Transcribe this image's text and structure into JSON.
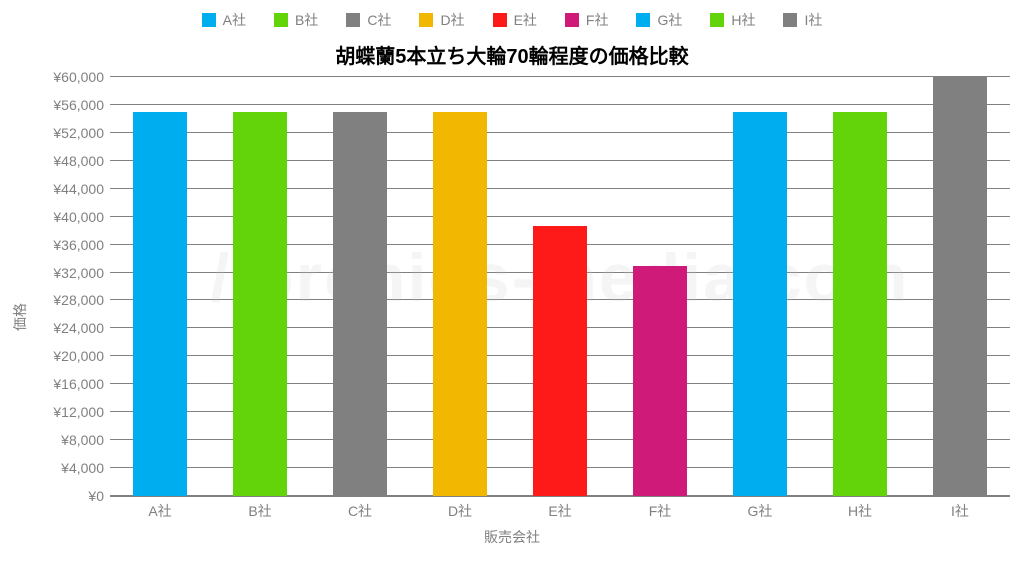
{
  "chart": {
    "type": "bar",
    "title": "胡蝶蘭5本立ち大輪70輪程度の価格比較",
    "title_fontsize": 20,
    "y_axis_label": "価格",
    "x_axis_label": "販売会社",
    "currency_prefix": "¥",
    "ylim": [
      0,
      60000
    ],
    "ytick_step": 4000,
    "background_color": "#ffffff",
    "grid_color": "#808080",
    "bar_width": 0.54,
    "watermark_text": "//orchids-media.com",
    "watermark_color": "rgba(200,200,200,0.18)",
    "categories": [
      "A社",
      "B社",
      "C社",
      "D社",
      "E社",
      "F社",
      "G社",
      "H社",
      "I社"
    ],
    "values": [
      55000,
      55000,
      55000,
      55000,
      38600,
      33000,
      55000,
      55000,
      60000
    ],
    "bar_colors": [
      "#00aeef",
      "#63d40a",
      "#808080",
      "#f2b700",
      "#ff1a1a",
      "#d01a7a",
      "#00aeef",
      "#63d40a",
      "#808080"
    ],
    "legend_items": [
      {
        "label": "A社",
        "color": "#00aeef"
      },
      {
        "label": "B社",
        "color": "#63d40a"
      },
      {
        "label": "C社",
        "color": "#808080"
      },
      {
        "label": "D社",
        "color": "#f2b700"
      },
      {
        "label": "E社",
        "color": "#ff1a1a"
      },
      {
        "label": "F社",
        "color": "#d01a7a"
      },
      {
        "label": "G社",
        "color": "#00aeef"
      },
      {
        "label": "H社",
        "color": "#63d40a"
      },
      {
        "label": "I社",
        "color": "#808080"
      }
    ],
    "label_fontsize": 14,
    "label_color": "#808080",
    "y_ticks": [
      0,
      4000,
      8000,
      12000,
      16000,
      20000,
      24000,
      28000,
      32000,
      36000,
      40000,
      44000,
      48000,
      52000,
      56000,
      60000
    ]
  }
}
